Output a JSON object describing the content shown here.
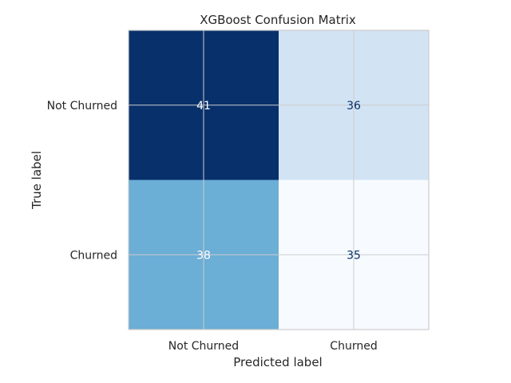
{
  "chart_data": {
    "type": "heatmap",
    "title": "XGBoost Confusion Matrix",
    "xlabel": "Predicted label",
    "ylabel": "True label",
    "x_categories": [
      "Not Churned",
      "Churned"
    ],
    "y_categories": [
      "Not Churned",
      "Churned"
    ],
    "values": [
      [
        41,
        36
      ],
      [
        38,
        35
      ]
    ],
    "colormap": "Blues",
    "colors": {
      "cells": [
        [
          "#08306b",
          "#d2e3f3"
        ],
        [
          "#6baed6",
          "#f7fbff"
        ]
      ],
      "text": [
        [
          "#ffffff",
          "#08306b"
        ],
        [
          "#ffffff",
          "#08306b"
        ]
      ],
      "grid": "#cccccc",
      "frame": "#cccccc"
    },
    "grid": true
  }
}
